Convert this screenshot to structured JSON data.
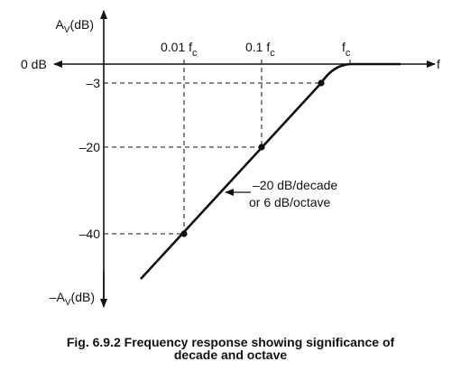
{
  "figure": {
    "y_axis_top": {
      "main": "A",
      "sub": "V",
      "rest": "(dB)"
    },
    "y_axis_bottom": {
      "main": "–A",
      "sub": "V",
      "rest": "(dB)"
    },
    "x_axis_label": "f",
    "zero_db": "0 dB",
    "y_ticks": [
      "–3",
      "–20",
      "–40"
    ],
    "freq_marks": [
      {
        "main": "0.01 f",
        "sub": "c"
      },
      {
        "main": "0.1 f",
        "sub": "c"
      },
      {
        "main": "f",
        "sub": "c"
      }
    ],
    "slope_annotation": [
      "–20 dB/decade",
      "or 6 dB/octave"
    ]
  },
  "caption": {
    "line1": "Fig. 6.9.2 Frequency response showing significance of",
    "line2": "decade and octave"
  }
}
